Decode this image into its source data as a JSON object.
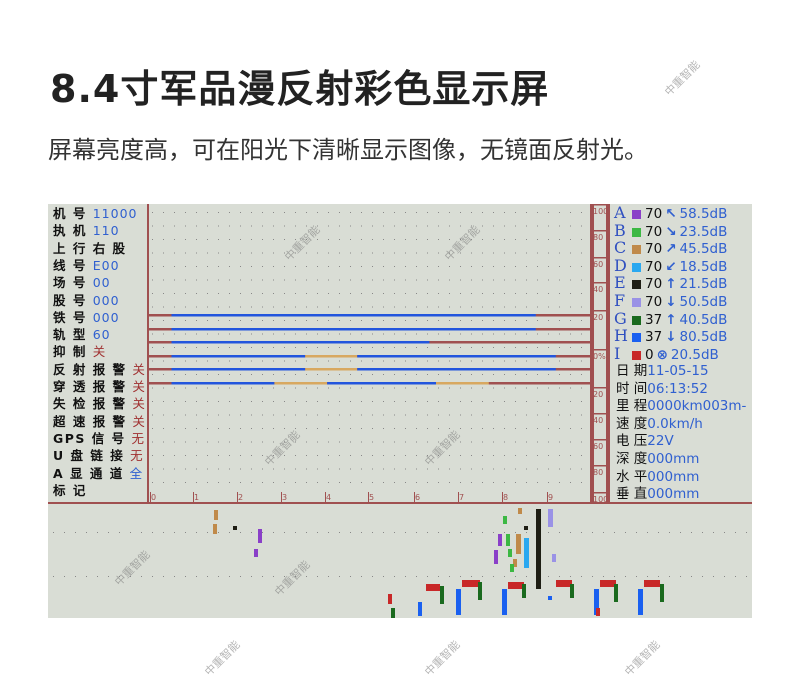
{
  "header": {
    "title": "8.4寸军品漫反射彩色显示屏",
    "subtitle": "屏幕亮度高，可在阳光下清晰显示图像，无镜面反射光。"
  },
  "watermark": "中重智能",
  "colors": {
    "frame": "#a05050",
    "blue_value": "#3060d0",
    "red_value": "#a03030",
    "trace_blue": "#2255dd",
    "trace_tan": "#d8a860",
    "trace_base": "#a05050"
  },
  "left_panel": [
    {
      "label": "机 号",
      "value": "11000",
      "color": "#3060d0"
    },
    {
      "label": "执 机",
      "value": "110",
      "color": "#3060d0"
    },
    {
      "label": "上 行 右 股",
      "value": "",
      "color": "#111"
    },
    {
      "label": "线 号",
      "value": "E00",
      "color": "#3060d0"
    },
    {
      "label": "场 号",
      "value": "00",
      "color": "#3060d0"
    },
    {
      "label": "股 号",
      "value": "000",
      "color": "#3060d0"
    },
    {
      "label": "铁 号",
      "value": "000",
      "color": "#3060d0"
    },
    {
      "label": "轨 型",
      "value": "60",
      "color": "#3060d0"
    },
    {
      "label": "抑 制",
      "value": "关",
      "color": "#a03030"
    },
    {
      "label": "反 射 报 警",
      "value": "关",
      "color": "#a03030"
    },
    {
      "label": "穿 透 报 警",
      "value": "关",
      "color": "#a03030"
    },
    {
      "label": "失 检 报 警",
      "value": "关",
      "color": "#a03030"
    },
    {
      "label": "超 速 报 警",
      "value": "关",
      "color": "#a03030"
    },
    {
      "label": "GPS 信 号",
      "value": "无",
      "color": "#a03030"
    },
    {
      "label": "U 盘 链 接",
      "value": "无",
      "color": "#a03030"
    },
    {
      "label": "A 显 通 道",
      "value": "全",
      "color": "#3060d0"
    },
    {
      "label": "标 记",
      "value": "",
      "color": "#111"
    }
  ],
  "channels": [
    {
      "id": "A",
      "color": "#8a3fc8",
      "gain": "70",
      "arrow": "↖",
      "db": "58.5dB"
    },
    {
      "id": "B",
      "color": "#3cb843",
      "gain": "70",
      "arrow": "↘",
      "db": "23.5dB"
    },
    {
      "id": "C",
      "color": "#c08a4a",
      "gain": "70",
      "arrow": "↗",
      "db": "45.5dB"
    },
    {
      "id": "D",
      "color": "#2aa8f0",
      "gain": "70",
      "arrow": "↙",
      "db": "18.5dB"
    },
    {
      "id": "E",
      "color": "#1e1e14",
      "gain": "70",
      "arrow": "↑",
      "db": "21.5dB"
    },
    {
      "id": "F",
      "color": "#9a92e6",
      "gain": "70",
      "arrow": "↓",
      "db": "50.5dB"
    },
    {
      "id": "G",
      "color": "#1a6a1e",
      "gain": "37",
      "arrow": "↑",
      "db": "40.5dB"
    },
    {
      "id": "H",
      "color": "#1a60f0",
      "gain": "37",
      "arrow": "↓",
      "db": "80.5dB"
    },
    {
      "id": "I",
      "color": "#c82828",
      "gain": "0",
      "arrow": "⊗",
      "db": "20.5dB"
    }
  ],
  "status": [
    {
      "label": "日 期",
      "value": "11-05-15"
    },
    {
      "label": "时 间",
      "value": "06:13:52"
    },
    {
      "label": "里 程",
      "value": "0000km003m-"
    },
    {
      "label": "速 度",
      "value": "0.0km/h"
    },
    {
      "label": "电 压",
      "value": "22V"
    },
    {
      "label": "深 度",
      "value": "000mm"
    },
    {
      "label": "水 平",
      "value": "000mm"
    },
    {
      "label": "垂 直",
      "value": "000mm"
    }
  ],
  "scale_labels": [
    "100",
    "80",
    "60",
    "40",
    "20",
    "0%",
    "20",
    "40",
    "60",
    "80",
    "100"
  ],
  "x_ticks": [
    "0",
    "1",
    "2",
    "3",
    "4",
    "5",
    "6",
    "7",
    "8",
    "9"
  ],
  "traces": [
    [
      [
        "blue",
        0.5,
        8.75
      ]
    ],
    [
      [
        "blue",
        0.5,
        8.75
      ]
    ],
    [
      [
        "blue",
        0.5,
        6.35
      ]
    ],
    [
      [
        "blue",
        0.5,
        3.55
      ],
      [
        "tan",
        3.55,
        4.75
      ],
      [
        "blue",
        4.75,
        9.2
      ]
    ],
    [
      [
        "blue",
        0.5,
        3.55
      ],
      [
        "tan",
        3.55,
        4.75
      ],
      [
        "blue",
        4.75,
        9.2
      ]
    ],
    [
      [
        "blue",
        0.5,
        2.85
      ],
      [
        "tan",
        2.85,
        4.05
      ],
      [
        "blue",
        4.05,
        6.5
      ],
      [
        "tan",
        6.5,
        7.7
      ]
    ]
  ]
}
